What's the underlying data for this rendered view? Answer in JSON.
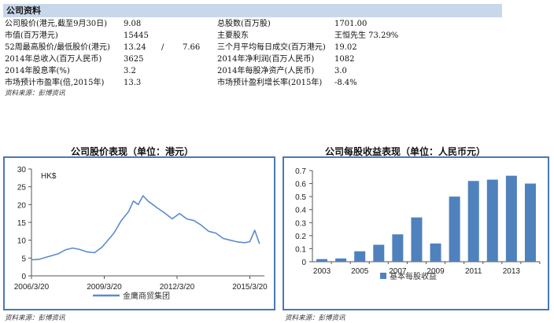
{
  "info": {
    "header": "公司资料",
    "rows": [
      {
        "label": "公司股价(港元,截至9月30日)",
        "value": "9.08",
        "label2": "总股数(百万股)",
        "value2": "1701.00"
      },
      {
        "label": "市值(百万港元)",
        "value": "15445",
        "label2": "主要股东",
        "value2": "王恒先生 73.29%"
      },
      {
        "label": "52周最高股价/最低股价(港元)",
        "value": "13.24",
        "slash": "/",
        "value_b": "7.66",
        "label2": "三个月平均每日成交(百万港元)",
        "value2": "19.02"
      },
      {
        "label": "2014年总收入(百万人民币)",
        "value": "3625",
        "label2": "2014年净利润(百万人民币)",
        "value2": "1082"
      },
      {
        "label": "2014年股息率(%)",
        "value": "3.2",
        "label2": "2014年每股净资产(人民币)",
        "value2": "3.0"
      },
      {
        "label": "市场预计市盈率(倍,2015年)",
        "value": "13.3",
        "label2": "市场预计盈利增长率(2015年)",
        "value2": "-8.4%"
      }
    ],
    "source": "资料来源：彭博资讯"
  },
  "chart_data": [
    {
      "type": "line",
      "title": "公司股价表现（单位：港元）",
      "ylabel": "HK$",
      "ylim": [
        0,
        30
      ],
      "yticks": [
        "0",
        "5",
        "10",
        "15",
        "20",
        "25",
        "30"
      ],
      "xticks": [
        "2006/3/20",
        "2009/3/20",
        "2012/3/20",
        "2015/3/20"
      ],
      "series": [
        {
          "name": "金鹰商贸集团",
          "x": [
            2006.2,
            2006.5,
            2006.8,
            2007.0,
            2007.3,
            2007.6,
            2007.9,
            2008.2,
            2008.5,
            2008.8,
            2009.1,
            2009.3,
            2009.6,
            2009.9,
            2010.2,
            2010.4,
            2010.6,
            2010.8,
            2011.0,
            2011.2,
            2011.4,
            2011.7,
            2012.0,
            2012.3,
            2012.6,
            2012.9,
            2013.2,
            2013.5,
            2013.8,
            2014.1,
            2014.4,
            2014.7,
            2015.0,
            2015.2,
            2015.4,
            2015.6
          ],
          "values": [
            4.5,
            4.6,
            5.2,
            5.6,
            6.2,
            7.3,
            7.8,
            7.4,
            6.7,
            6.5,
            8.0,
            9.6,
            12.0,
            15.5,
            18.0,
            21.0,
            20.0,
            22.5,
            21.0,
            20.0,
            19.0,
            17.6,
            16.0,
            17.5,
            16.0,
            15.5,
            14.2,
            12.5,
            12.0,
            10.5,
            10.0,
            9.5,
            9.3,
            9.6,
            12.8,
            9.0
          ]
        }
      ]
    },
    {
      "type": "bar",
      "title": "公司每股收益表现（单位：人民币元）",
      "ylim": [
        0,
        0.7
      ],
      "yticks": [
        "0",
        "0.1",
        "0.2",
        "0.3",
        "0.4",
        "0.5",
        "0.6",
        "0.7"
      ],
      "categories": [
        "2003",
        "2004",
        "2005",
        "2006",
        "2007",
        "2008",
        "2009",
        "2010",
        "2011",
        "2012",
        "2013",
        "2014"
      ],
      "xtick_labels": [
        "2003",
        "2005",
        "2007",
        "2009",
        "2011",
        "2013"
      ],
      "series": [
        {
          "name": "基本每股收益",
          "values": [
            0.02,
            0.025,
            0.08,
            0.13,
            0.21,
            0.34,
            0.14,
            0.5,
            0.62,
            0.63,
            0.66,
            0.6
          ]
        }
      ]
    }
  ],
  "sources": {
    "left": "资料来源：彭博资讯",
    "right": "资料来源：彭博资讯"
  },
  "colors": {
    "line": "#5b8bcf",
    "bar": "#4f81bd",
    "frame": "#4a78b5",
    "header_bg": "#c9d7ea"
  }
}
